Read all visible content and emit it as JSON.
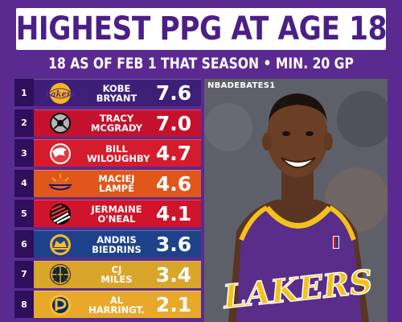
{
  "header": {
    "title": "HIGHEST PPG AT AGE 18",
    "subtitle": "18 AS OF FEB 1 THAT SEASON • MIN. 20 GP"
  },
  "colors": {
    "background": "#5b2a91",
    "title_text": "#4b1f86",
    "rank_box": "#2d0f5c"
  },
  "players": [
    {
      "rank": "1",
      "first": "KOBE",
      "last": "BRYANT",
      "ppg": "7.6",
      "team_logo": "lakers-logo",
      "color": "#3d1f78"
    },
    {
      "rank": "2",
      "first": "TRACY",
      "last": "MCGRADY",
      "ppg": "7.0",
      "team_logo": "raptors-logo",
      "color": "#c4122e"
    },
    {
      "rank": "3",
      "first": "BILL",
      "last": "WILOUGHBY",
      "ppg": "4.7",
      "team_logo": "hawks-logo",
      "color": "#d51c2c"
    },
    {
      "rank": "4",
      "first": "MACIEJ",
      "last": "LAMPE",
      "ppg": "4.6",
      "team_logo": "suns-logo",
      "color": "#e0561b"
    },
    {
      "rank": "5",
      "first": "JERMAINE",
      "last": "O'NEAL",
      "ppg": "4.1",
      "team_logo": "blazers-logo",
      "color": "#d0142b"
    },
    {
      "rank": "6",
      "first": "ANDRIS",
      "last": "BIEDRINS",
      "ppg": "3.6",
      "team_logo": "warriors-logo",
      "color": "#1d428a"
    },
    {
      "rank": "7",
      "first": "CJ",
      "last": "MILES",
      "ppg": "3.4",
      "team_logo": "jazz-logo",
      "color": "#d9a52a"
    },
    {
      "rank": "8",
      "first": "AL",
      "last": "HARRINGT.",
      "ppg": "2.1",
      "team_logo": "pacers-logo",
      "color": "#e8a92b"
    }
  ],
  "photo": {
    "watermark": "NBADEBATES1",
    "jersey_text": "LAKERS",
    "subject": "kobe-bryant-photo"
  }
}
